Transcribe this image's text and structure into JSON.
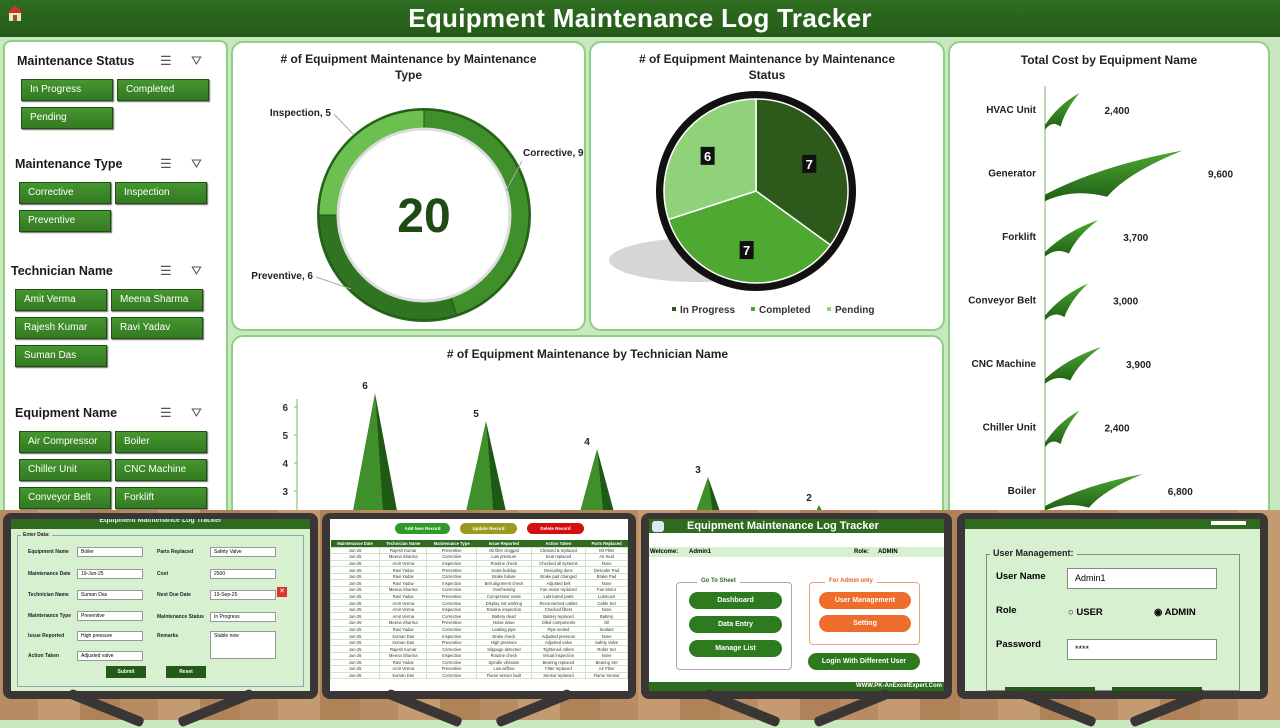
{
  "header": {
    "title": "Equipment Maintenance Log Tracker",
    "icon": "home-icon"
  },
  "slicers": [
    {
      "title": "Maintenance Status",
      "items": [
        "In Progress",
        "Completed",
        "Pending"
      ]
    },
    {
      "title": "Maintenance Type",
      "items": [
        "Corrective",
        "Inspection",
        "Preventive"
      ]
    },
    {
      "title": "Technician Name",
      "items": [
        "Amit Verma",
        "Meena Sharma",
        "Rajesh Kumar",
        "Ravi Yadav",
        "Suman Das"
      ]
    },
    {
      "title": "Equipment Name",
      "items": [
        "Air Compressor",
        "Boiler",
        "Chiller Unit",
        "CNC Machine",
        "Conveyor Belt",
        "Forklift"
      ]
    }
  ],
  "colors": {
    "dark_green": "#2d5a1b",
    "mid_green": "#4ea832",
    "light_green": "#8fd27a",
    "header": "#2f6e21",
    "panel_bg": "#c9e8c0"
  },
  "chart_data": [
    {
      "type": "pie",
      "variant": "donut",
      "title": "# of Equipment Maintenance by Maintenance Type",
      "center_label": "20",
      "categories": [
        "Corrective",
        "Preventive",
        "Inspection"
      ],
      "values": [
        9,
        6,
        5
      ],
      "labels": [
        "Corrective, 9",
        "Preventive, 6",
        "Inspection, 5"
      ]
    },
    {
      "type": "pie",
      "title": "# of Equipment Maintenance by Maintenance Status",
      "categories": [
        "In Progress",
        "Completed",
        "Pending"
      ],
      "values": [
        7,
        7,
        6
      ],
      "legend": "bottom"
    },
    {
      "type": "bar",
      "variant": "pyramid",
      "title": "# of Equipment Maintenance by Technician Name",
      "values": [
        6,
        5,
        4,
        3,
        2
      ],
      "yticks": [
        "6",
        "5",
        "4",
        "3"
      ]
    },
    {
      "type": "bar",
      "orientation": "horizontal",
      "variant": "funnel",
      "title": "Total Cost by Equipment Name",
      "categories": [
        "HVAC Unit",
        "Generator",
        "Forklift",
        "Conveyor Belt",
        "CNC Machine",
        "Chiller Unit",
        "Boiler"
      ],
      "values": [
        2400,
        9600,
        3700,
        3000,
        3900,
        2400,
        6800
      ],
      "value_labels": [
        "2,400",
        "9,600",
        "3,700",
        "3,000",
        "3,900",
        "2,400",
        "6,800"
      ]
    }
  ],
  "form": {
    "title": "Equipment Maintenance Log Tracker",
    "group": "Enter Data:",
    "left": [
      {
        "label": "Equipment Name",
        "value": "Boiler"
      },
      {
        "label": "Maintenance Date",
        "value": "19-Jun-25"
      },
      {
        "label": "Technician Name",
        "value": "Suman Das"
      },
      {
        "label": "Maintenance Type",
        "value": "Preventive"
      },
      {
        "label": "Issue Reported",
        "value": "High pressure"
      },
      {
        "label": "Action Taken",
        "value": "Adjusted valve"
      }
    ],
    "right": [
      {
        "label": "Parts Replaced",
        "value": "Safety Valve"
      },
      {
        "label": "Cost",
        "value": "2500"
      },
      {
        "label": "Next Due Date",
        "value": "19-Sep-25"
      },
      {
        "label": "Maintenance Status",
        "value": "In Progress"
      },
      {
        "label": "Remarks",
        "value": "Stable now"
      }
    ],
    "submit": "Submit",
    "reset": "Reset"
  },
  "records": {
    "add": "Add New Record",
    "update": "Update Record",
    "delete": "Delete Record",
    "columns": [
      "Maintenance Date",
      "Technician Name",
      "Maintenance Type",
      "Issue Reported",
      "Action Taken",
      "Parts Replaced"
    ],
    "rows": [
      [
        "Jun-25",
        "Rajesh Kumar",
        "Preventive",
        "Oil filter clogged",
        "Cleaned & replaced",
        "Oil Filter"
      ],
      [
        "Jun-25",
        "Meena Sharma",
        "Corrective",
        "Low pressure",
        "Seal replaced",
        "Air Seal"
      ],
      [
        "Jun-25",
        "Amit Verma",
        "Inspection",
        "Routine check",
        "Checked all systems",
        "None"
      ],
      [
        "Jun-25",
        "Ravi Yadav",
        "Preventive",
        "Scale buildup",
        "Descaling done",
        "Descaler Pad"
      ],
      [
        "Jun-25",
        "Ravi Yadav",
        "Corrective",
        "Brake failure",
        "Brake pad changed",
        "Brake Pad"
      ],
      [
        "Jun-25",
        "Ravi Yadav",
        "Inspection",
        "Belt alignment check",
        "Adjusted belt",
        "None"
      ],
      [
        "Jun-25",
        "Meena Sharma",
        "Corrective",
        "Overheating",
        "Fan motor replaced",
        "Fan Motor"
      ],
      [
        "Jun-25",
        "Ravi Yadav",
        "Preventive",
        "Compressor noise",
        "Lubricated parts",
        "Lubricant"
      ],
      [
        "Jun-25",
        "Amit Verma",
        "Corrective",
        "Display not working",
        "Reconnected cables",
        "Cable Set"
      ],
      [
        "Jun-25",
        "Amit Verma",
        "Inspection",
        "Routine inspection",
        "Checked filters",
        "None"
      ],
      [
        "Jun-25",
        "Amit Verma",
        "Corrective",
        "Battery dead",
        "Battery replaced",
        "Battery"
      ],
      [
        "Jun-25",
        "Meena Sharma",
        "Preventive",
        "Noise issue",
        "Oiled components",
        "Oil"
      ],
      [
        "Jun-25",
        "Ravi Yadav",
        "Corrective",
        "Leaking pipe",
        "Pipe sealed",
        "Sealant"
      ],
      [
        "Jun-25",
        "Suman Das",
        "Inspection",
        "Brake check",
        "Adjusted pressure",
        "None"
      ],
      [
        "Jun-25",
        "Suman Das",
        "Preventive",
        "High pressure",
        "Adjusted valve",
        "Safety Valve"
      ],
      [
        "Jun-25",
        "Rajesh Kumar",
        "Corrective",
        "Slippage detected",
        "Tightened rollers",
        "Roller Set"
      ],
      [
        "Jun-25",
        "Meena Sharma",
        "Inspection",
        "Routine check",
        "Visual inspection",
        "None"
      ],
      [
        "Jun-25",
        "Ravi Yadav",
        "Corrective",
        "Spindle vibration",
        "Bearing replaced",
        "Bearing Set"
      ],
      [
        "Jun-25",
        "Amit Verma",
        "Preventive",
        "Low airflow",
        "Filter replaced",
        "Air Filter"
      ],
      [
        "Jun-25",
        "Suman Das",
        "Corrective",
        "Flame sensor fault",
        "Sensor replaced",
        "Flame Sensor"
      ]
    ]
  },
  "menu": {
    "title": "Equipment Maintenance Log Tracker",
    "welcome_label": "Welcome:",
    "user": "Admin1",
    "role_label": "Role:",
    "role": "ADMIN",
    "goto": "Go To Sheet",
    "buttons": [
      "Dashboard",
      "Data Entry",
      "Manage List"
    ],
    "admin": "For Admin only",
    "admin_buttons": [
      "User Management",
      "Setting"
    ],
    "login": "Login With Different User",
    "footer": "WWW.PK-AnExcelExpert.Com"
  },
  "users": {
    "group": "User Management:",
    "user_label": "User Name",
    "user": "Admin1",
    "role_label": "Role",
    "roles": [
      "USER",
      "ADMIN"
    ],
    "selected": "ADMIN",
    "password_label": "Password",
    "password": "****"
  }
}
